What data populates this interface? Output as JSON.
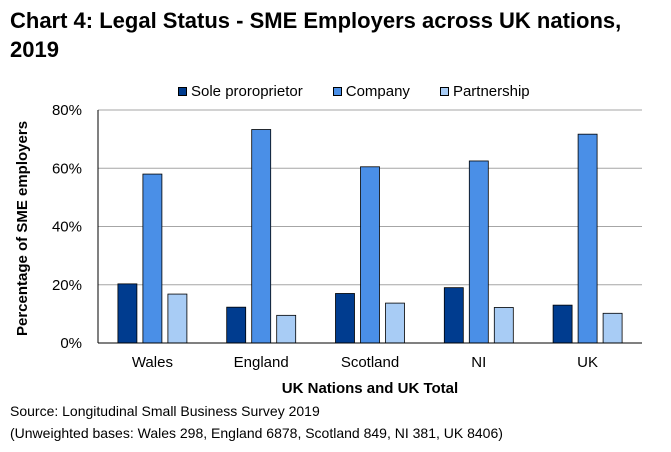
{
  "title": "Chart 4: Legal Status - SME Employers across UK nations, 2019",
  "source_line": "Source: Longitudinal Small Business Survey 2019",
  "bases_line": "(Unweighted bases: Wales 298, England 6878, Scotland 849, NI 381, UK 8406)",
  "colors": {
    "sole": "#003C8F",
    "company": "#4A8FE7",
    "partnership": "#A8CCF5"
  },
  "chart_data": {
    "type": "bar",
    "title": "Chart 4: Legal Status - SME Employers across UK nations, 2019",
    "categories": [
      "Wales",
      "England",
      "Scotland",
      "NI",
      "UK"
    ],
    "series": [
      {
        "name": "Sole proroprietor",
        "color_key": "sole",
        "values": [
          20.3,
          12.3,
          17.0,
          19.0,
          13.0
        ]
      },
      {
        "name": "Company",
        "color_key": "company",
        "values": [
          58.0,
          73.3,
          60.5,
          62.5,
          71.7
        ]
      },
      {
        "name": "Partnership",
        "color_key": "partnership",
        "values": [
          16.8,
          9.5,
          13.7,
          12.2,
          10.2
        ]
      }
    ],
    "xlabel": "UK Nations and UK Total",
    "ylabel": "Percentage of SME employers",
    "ylim": [
      0,
      80
    ],
    "yticks": [
      0,
      20,
      40,
      60,
      80
    ],
    "ytick_labels": [
      "0%",
      "20%",
      "40%",
      "60%",
      "80%"
    ],
    "grid": true,
    "legend": "top"
  }
}
